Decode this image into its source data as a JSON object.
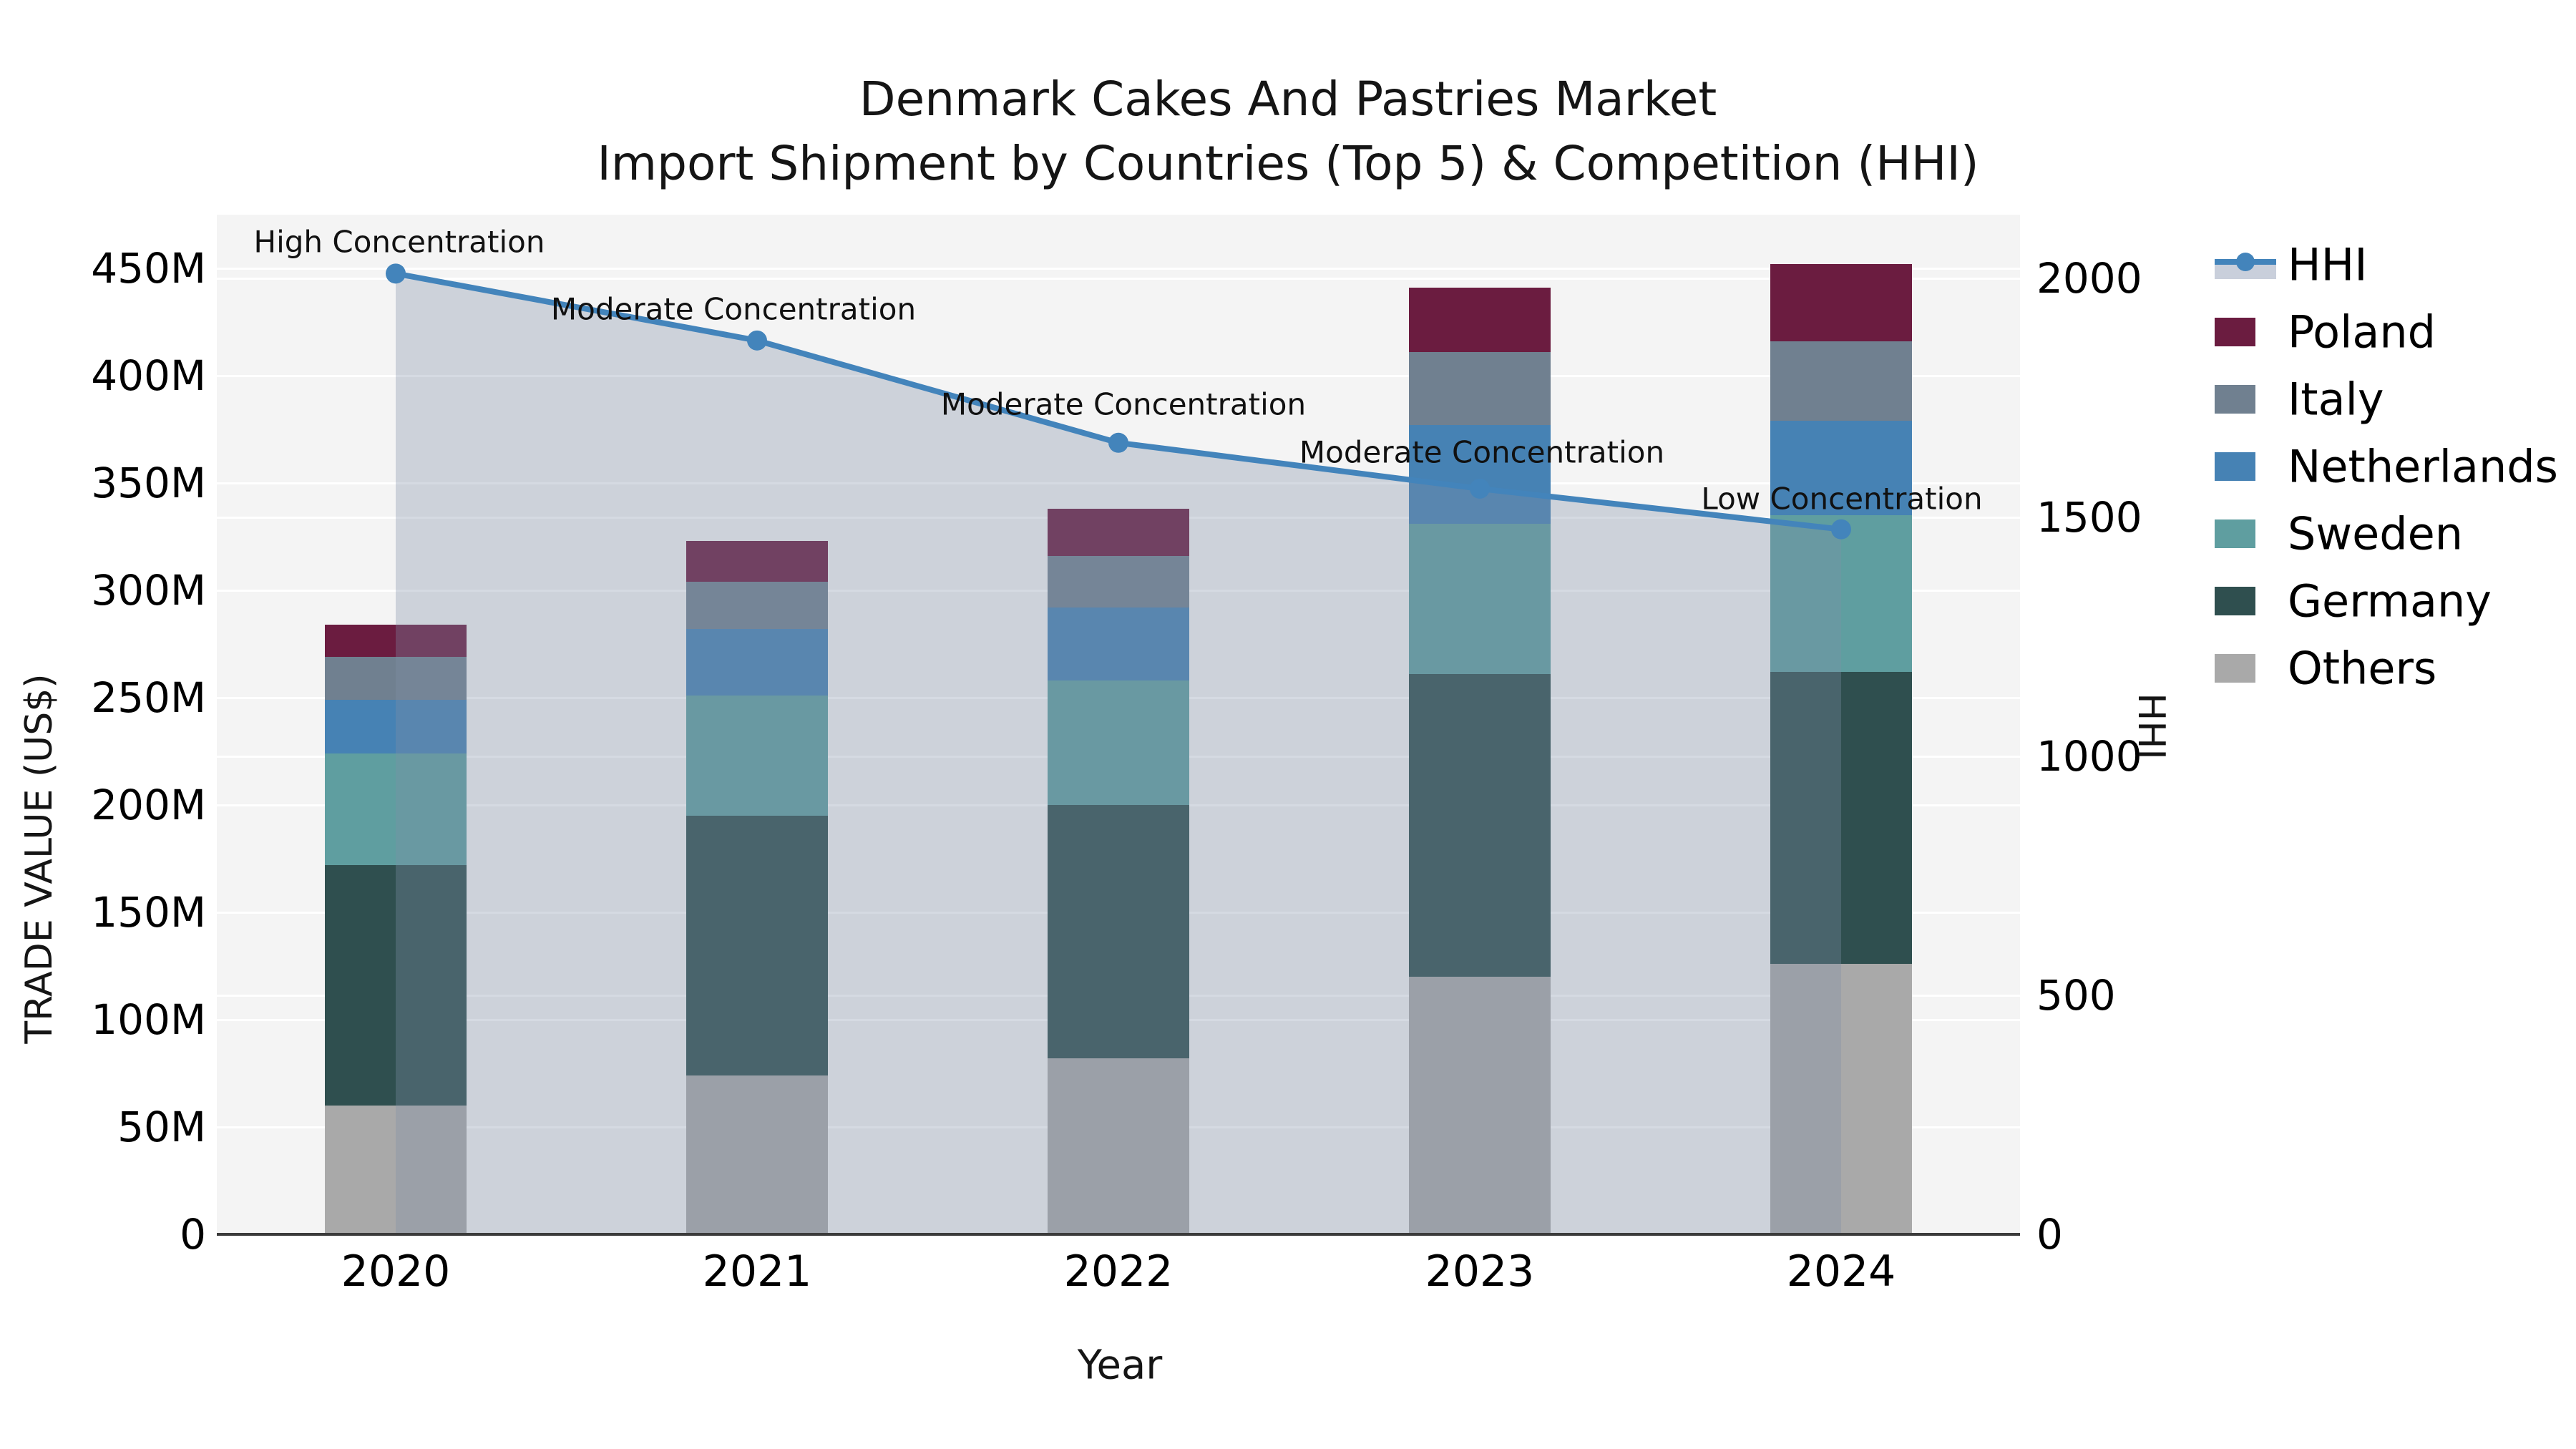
{
  "title": {
    "line1": "Denmark Cakes And Pastries Market",
    "line2": "Import Shipment by Countries (Top 5) & Competition (HHI)"
  },
  "axes": {
    "x_label": "Year",
    "y_left_label": "TRADE VALUE (US$)",
    "y_right_label": "HHI",
    "y_left_tick_labels": [
      "0",
      "50M",
      "100M",
      "150M",
      "200M",
      "250M",
      "300M",
      "350M",
      "400M",
      "450M"
    ],
    "y_left_tick_values": [
      0,
      50,
      100,
      150,
      200,
      250,
      300,
      350,
      400,
      450
    ],
    "y_right_tick_labels": [
      "0",
      "500",
      "1000",
      "1500",
      "2000"
    ],
    "y_right_tick_values": [
      0,
      500,
      1000,
      1500,
      2000
    ]
  },
  "chart_data": {
    "type": "bar",
    "subtype": "stacked-bars-with-hhi-line-area",
    "title": "Denmark Cakes And Pastries Market — Import Shipment by Countries (Top 5) & Competition (HHI)",
    "xlabel": "Year",
    "ylabel_left": "TRADE VALUE (US$)",
    "ylabel_right": "HHI",
    "categories": [
      "2020",
      "2021",
      "2022",
      "2023",
      "2024"
    ],
    "unit": "US$ millions",
    "series": [
      {
        "name": "Poland",
        "type": "bar",
        "color": "#6b1c40",
        "values": [
          15,
          19,
          22,
          30,
          36
        ]
      },
      {
        "name": "Italy",
        "type": "bar",
        "color": "#708090",
        "values": [
          20,
          22,
          24,
          34,
          37
        ]
      },
      {
        "name": "Netherlands",
        "type": "bar",
        "color": "#4682b4",
        "values": [
          25,
          31,
          34,
          46,
          44
        ]
      },
      {
        "name": "Sweden",
        "type": "bar",
        "color": "#5f9ea0",
        "values": [
          52,
          56,
          58,
          70,
          73
        ]
      },
      {
        "name": "Germany",
        "type": "bar",
        "color": "#2f4f4f",
        "values": [
          112,
          121,
          118,
          141,
          136
        ]
      },
      {
        "name": "Others",
        "type": "bar",
        "color": "#a9a9a9",
        "values": [
          60,
          74,
          82,
          120,
          126
        ]
      }
    ],
    "stack_order_bottom_to_top": [
      "Others",
      "Germany",
      "Sweden",
      "Netherlands",
      "Italy",
      "Poland"
    ],
    "bar_totals": [
      284,
      323,
      338,
      441,
      452
    ],
    "line": {
      "name": "HHI",
      "axis": "right",
      "color": "#4384bb",
      "area_fill_color": "rgba(127,142,166,0.33)",
      "values": [
        2010,
        1870,
        1656,
        1560,
        1475
      ]
    },
    "annotations": [
      {
        "category": "2020",
        "text": "High Concentration"
      },
      {
        "category": "2021",
        "text": "Moderate Concentration"
      },
      {
        "category": "2022",
        "text": "Moderate Concentration"
      },
      {
        "category": "2023",
        "text": "Moderate Concentration"
      },
      {
        "category": "2024",
        "text": "Low Concentration"
      }
    ],
    "ylim_left": [
      0,
      475
    ],
    "ylim_right": [
      0,
      2133
    ],
    "grid": true,
    "legend_position": "right"
  },
  "legend": {
    "items": [
      {
        "label": "HHI",
        "marker": "line",
        "color": "#4384bb"
      },
      {
        "label": "Poland",
        "marker": "swatch",
        "color": "#6b1c40"
      },
      {
        "label": "Italy",
        "marker": "swatch",
        "color": "#708090"
      },
      {
        "label": "Netherlands",
        "marker": "swatch",
        "color": "#4682b4"
      },
      {
        "label": "Sweden",
        "marker": "swatch",
        "color": "#5f9ea0"
      },
      {
        "label": "Germany",
        "marker": "swatch",
        "color": "#2f4f4f"
      },
      {
        "label": "Others",
        "marker": "swatch",
        "color": "#a9a9a9"
      }
    ]
  }
}
